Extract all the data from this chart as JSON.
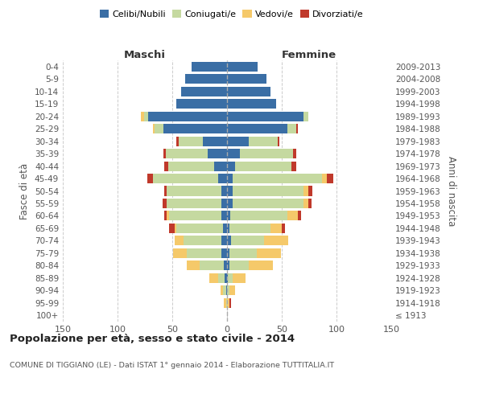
{
  "age_groups": [
    "0-4",
    "5-9",
    "10-14",
    "15-19",
    "20-24",
    "25-29",
    "30-34",
    "35-39",
    "40-44",
    "45-49",
    "50-54",
    "55-59",
    "60-64",
    "65-69",
    "70-74",
    "75-79",
    "80-84",
    "85-89",
    "90-94",
    "95-99",
    "100+"
  ],
  "birth_years": [
    "2009-2013",
    "2004-2008",
    "1999-2003",
    "1994-1998",
    "1989-1993",
    "1984-1988",
    "1979-1983",
    "1974-1978",
    "1969-1973",
    "1964-1968",
    "1959-1963",
    "1954-1958",
    "1949-1953",
    "1944-1948",
    "1939-1943",
    "1934-1938",
    "1929-1933",
    "1924-1928",
    "1919-1923",
    "1914-1918",
    "≤ 1913"
  ],
  "maschi": {
    "celibi": [
      32,
      38,
      42,
      46,
      72,
      58,
      22,
      18,
      12,
      8,
      5,
      5,
      5,
      4,
      5,
      5,
      3,
      2,
      1,
      0,
      0
    ],
    "coniugati": [
      0,
      0,
      0,
      0,
      4,
      8,
      22,
      38,
      42,
      60,
      50,
      50,
      48,
      42,
      35,
      32,
      22,
      6,
      3,
      1,
      0
    ],
    "vedovi": [
      0,
      0,
      0,
      0,
      3,
      2,
      0,
      0,
      0,
      0,
      0,
      0,
      2,
      2,
      8,
      12,
      12,
      8,
      2,
      2,
      0
    ],
    "divorziati": [
      0,
      0,
      0,
      0,
      0,
      0,
      2,
      2,
      3,
      5,
      2,
      4,
      2,
      5,
      0,
      0,
      0,
      0,
      0,
      0,
      0
    ]
  },
  "femmine": {
    "nubili": [
      28,
      36,
      40,
      45,
      70,
      55,
      20,
      12,
      7,
      5,
      5,
      5,
      3,
      2,
      4,
      2,
      2,
      1,
      0,
      0,
      0
    ],
    "coniugate": [
      0,
      0,
      0,
      0,
      4,
      8,
      26,
      48,
      52,
      82,
      65,
      65,
      52,
      38,
      30,
      25,
      18,
      4,
      2,
      0,
      0
    ],
    "vedove": [
      0,
      0,
      0,
      0,
      0,
      0,
      0,
      0,
      0,
      4,
      4,
      4,
      10,
      10,
      22,
      22,
      22,
      12,
      5,
      2,
      0
    ],
    "divorziate": [
      0,
      0,
      0,
      0,
      0,
      2,
      2,
      3,
      4,
      6,
      4,
      3,
      3,
      3,
      0,
      0,
      0,
      0,
      0,
      2,
      0
    ]
  },
  "colors": {
    "celibi": "#3a6ea5",
    "coniugati": "#c5d9a0",
    "vedovi": "#f5c96a",
    "divorziati": "#c0392b"
  },
  "xlim": 150,
  "title": "Popolazione per età, sesso e stato civile - 2014",
  "subtitle": "COMUNE DI TIGGIANO (LE) - Dati ISTAT 1° gennaio 2014 - Elaborazione TUTTITALIA.IT",
  "ylabel_left": "Fasce di età",
  "ylabel_right": "Anni di nascita",
  "xlabel_left": "Maschi",
  "xlabel_right": "Femmine",
  "legend_labels": [
    "Celibi/Nubili",
    "Coniugati/e",
    "Vedovi/e",
    "Divorziati/e"
  ],
  "background_color": "#ffffff",
  "grid_color": "#cccccc"
}
